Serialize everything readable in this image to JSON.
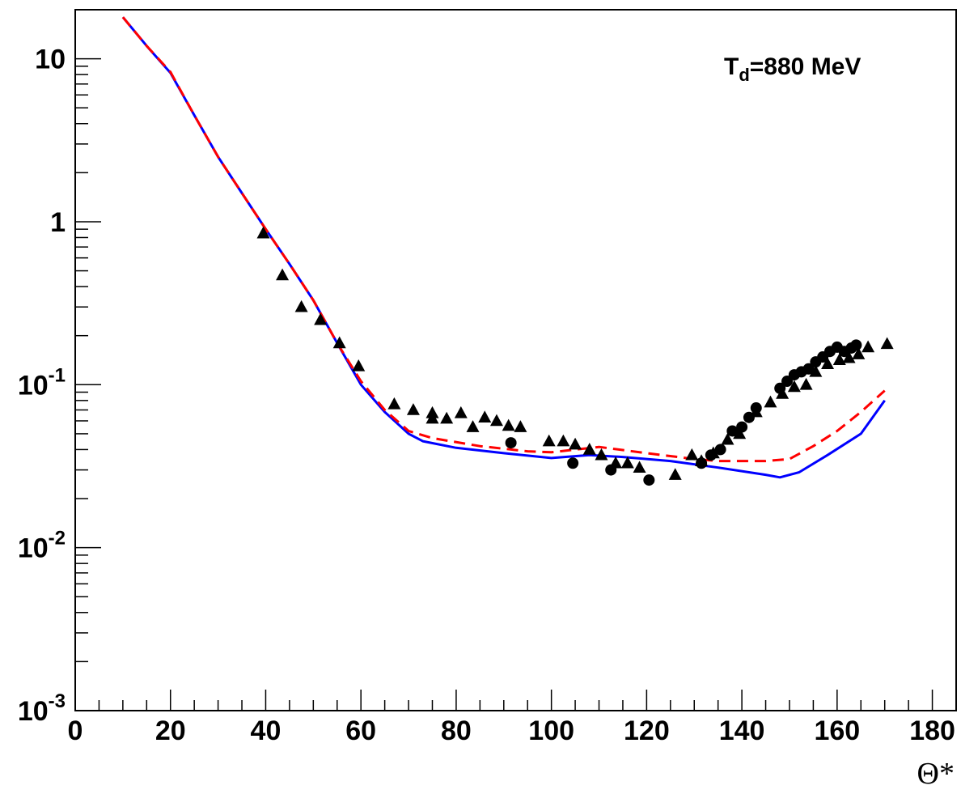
{
  "chart_data": {
    "type": "scatter",
    "title": "",
    "xlabel": "Θ*",
    "ylabel": "",
    "xlim": [
      0,
      185
    ],
    "ylim": [
      0.001,
      20
    ],
    "y_scale": "log",
    "grid": false,
    "legend": "none",
    "annotation": {
      "base": "T",
      "sub": "d",
      "rest": "=880 MeV"
    },
    "x_ticks": [
      {
        "value": 0,
        "label": "0"
      },
      {
        "value": 20,
        "label": "20"
      },
      {
        "value": 40,
        "label": "40"
      },
      {
        "value": 60,
        "label": "60"
      },
      {
        "value": 80,
        "label": "80"
      },
      {
        "value": 100,
        "label": "100"
      },
      {
        "value": 120,
        "label": "120"
      },
      {
        "value": 140,
        "label": "140"
      },
      {
        "value": 160,
        "label": "160"
      },
      {
        "value": 180,
        "label": "180"
      }
    ],
    "y_ticks": [
      {
        "value": 0.001,
        "base": "10",
        "exp": "-3"
      },
      {
        "value": 0.01,
        "base": "10",
        "exp": "-2"
      },
      {
        "value": 0.1,
        "base": "10",
        "exp": "-1"
      },
      {
        "value": 1,
        "base": "1",
        "exp": ""
      },
      {
        "value": 10,
        "base": "10",
        "exp": ""
      }
    ],
    "series": [
      {
        "kind": "line",
        "style": "solid",
        "color": "#0000ff",
        "points": [
          [
            10,
            18
          ],
          [
            15,
            12
          ],
          [
            20,
            8.2
          ],
          [
            25,
            4.5
          ],
          [
            30,
            2.5
          ],
          [
            35,
            1.5
          ],
          [
            40,
            0.9
          ],
          [
            45,
            0.55
          ],
          [
            50,
            0.33
          ],
          [
            55,
            0.18
          ],
          [
            60,
            0.1
          ],
          [
            65,
            0.068
          ],
          [
            70,
            0.05
          ],
          [
            73,
            0.045
          ],
          [
            80,
            0.041
          ],
          [
            90,
            0.038
          ],
          [
            100,
            0.0355
          ],
          [
            108,
            0.037
          ],
          [
            115,
            0.036
          ],
          [
            125,
            0.034
          ],
          [
            135,
            0.031
          ],
          [
            145,
            0.028
          ],
          [
            148,
            0.027
          ],
          [
            152,
            0.029
          ],
          [
            158,
            0.037
          ],
          [
            165,
            0.05
          ],
          [
            170,
            0.08
          ]
        ]
      },
      {
        "kind": "line",
        "style": "dashed",
        "color": "#ff0000",
        "points": [
          [
            10,
            18
          ],
          [
            15,
            12
          ],
          [
            20,
            8.3
          ],
          [
            25,
            4.5
          ],
          [
            30,
            2.5
          ],
          [
            35,
            1.5
          ],
          [
            40,
            0.9
          ],
          [
            45,
            0.55
          ],
          [
            50,
            0.33
          ],
          [
            55,
            0.18
          ],
          [
            60,
            0.105
          ],
          [
            65,
            0.07
          ],
          [
            70,
            0.052
          ],
          [
            75,
            0.047
          ],
          [
            85,
            0.042
          ],
          [
            95,
            0.039
          ],
          [
            100,
            0.0385
          ],
          [
            110,
            0.0415
          ],
          [
            120,
            0.038
          ],
          [
            130,
            0.035
          ],
          [
            135,
            0.034
          ],
          [
            145,
            0.034
          ],
          [
            150,
            0.035
          ],
          [
            155,
            0.042
          ],
          [
            160,
            0.052
          ],
          [
            165,
            0.068
          ],
          [
            170,
            0.092
          ]
        ]
      },
      {
        "kind": "scatter",
        "marker": "triangle",
        "color": "#000000",
        "points": [
          [
            39.5,
            0.85
          ],
          [
            43.5,
            0.47
          ],
          [
            47.5,
            0.3
          ],
          [
            51.5,
            0.25
          ],
          [
            55.5,
            0.18
          ],
          [
            59.5,
            0.13
          ],
          [
            67,
            0.076
          ],
          [
            71,
            0.07
          ],
          [
            75,
            0.067
          ],
          [
            75,
            0.062
          ],
          [
            78,
            0.062
          ],
          [
            81,
            0.067
          ],
          [
            83.5,
            0.055
          ],
          [
            86,
            0.063
          ],
          [
            88.5,
            0.06
          ],
          [
            91,
            0.056
          ],
          [
            93.5,
            0.055
          ],
          [
            99.5,
            0.045
          ],
          [
            102.5,
            0.045
          ],
          [
            105,
            0.043
          ],
          [
            108,
            0.04
          ],
          [
            110.5,
            0.037
          ],
          [
            113.5,
            0.033
          ],
          [
            116,
            0.033
          ],
          [
            118.5,
            0.031
          ],
          [
            126,
            0.028
          ],
          [
            129.5,
            0.037
          ],
          [
            131.5,
            0.034
          ],
          [
            134,
            0.038
          ],
          [
            137,
            0.046
          ],
          [
            139.5,
            0.05
          ],
          [
            143,
            0.068
          ],
          [
            146,
            0.078
          ],
          [
            148.5,
            0.088
          ],
          [
            151,
            0.097
          ],
          [
            153.5,
            0.1
          ],
          [
            155.5,
            0.12
          ],
          [
            158,
            0.134
          ],
          [
            160.5,
            0.142
          ],
          [
            162.5,
            0.146
          ],
          [
            164.5,
            0.154
          ],
          [
            166.5,
            0.17
          ],
          [
            170.5,
            0.178
          ]
        ]
      },
      {
        "kind": "scatter",
        "marker": "circle",
        "color": "#000000",
        "points": [
          [
            91.5,
            0.044
          ],
          [
            104.5,
            0.033
          ],
          [
            112.5,
            0.03
          ],
          [
            120.5,
            0.026
          ],
          [
            131.5,
            0.033
          ],
          [
            133.5,
            0.037
          ],
          [
            135.5,
            0.04
          ],
          [
            138,
            0.052
          ],
          [
            140,
            0.055
          ],
          [
            141.5,
            0.063
          ],
          [
            143,
            0.072
          ],
          [
            148,
            0.095
          ],
          [
            149.5,
            0.105
          ],
          [
            151,
            0.115
          ],
          [
            152.5,
            0.12
          ],
          [
            154,
            0.125
          ],
          [
            155.5,
            0.138
          ],
          [
            157,
            0.148
          ],
          [
            158.5,
            0.16
          ],
          [
            160,
            0.17
          ],
          [
            161.5,
            0.16
          ],
          [
            163,
            0.168
          ],
          [
            164,
            0.175
          ]
        ]
      }
    ]
  }
}
